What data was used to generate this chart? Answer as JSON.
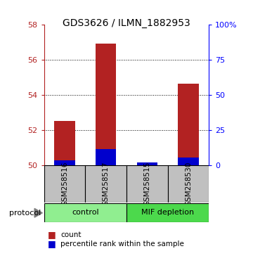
{
  "title": "GDS3626 / ILMN_1882953",
  "samples": [
    "GSM258516",
    "GSM258517",
    "GSM258515",
    "GSM258530"
  ],
  "groups": [
    "control",
    "control",
    "MIF depletion",
    "MIF depletion"
  ],
  "group_labels": [
    "control",
    "MIF depletion"
  ],
  "group_colors_light": [
    "#90EE90",
    "#3DD63D"
  ],
  "bar_color_red": "#B22222",
  "bar_color_blue": "#0000CD",
  "red_values": [
    52.5,
    56.9,
    50.15,
    54.65
  ],
  "blue_values": [
    3.5,
    11.5,
    2.0,
    5.5
  ],
  "ymin": 50,
  "ymax": 58,
  "yticks_left": [
    50,
    52,
    54,
    56,
    58
  ],
  "yticks_right": [
    0,
    25,
    50,
    75,
    100
  ],
  "legend_count": "count",
  "legend_pct": "percentile rank within the sample",
  "protocol_label": "protocol",
  "bar_width": 0.5,
  "sample_box_color": "#C0C0C0",
  "background_color": "#FFFFFF"
}
